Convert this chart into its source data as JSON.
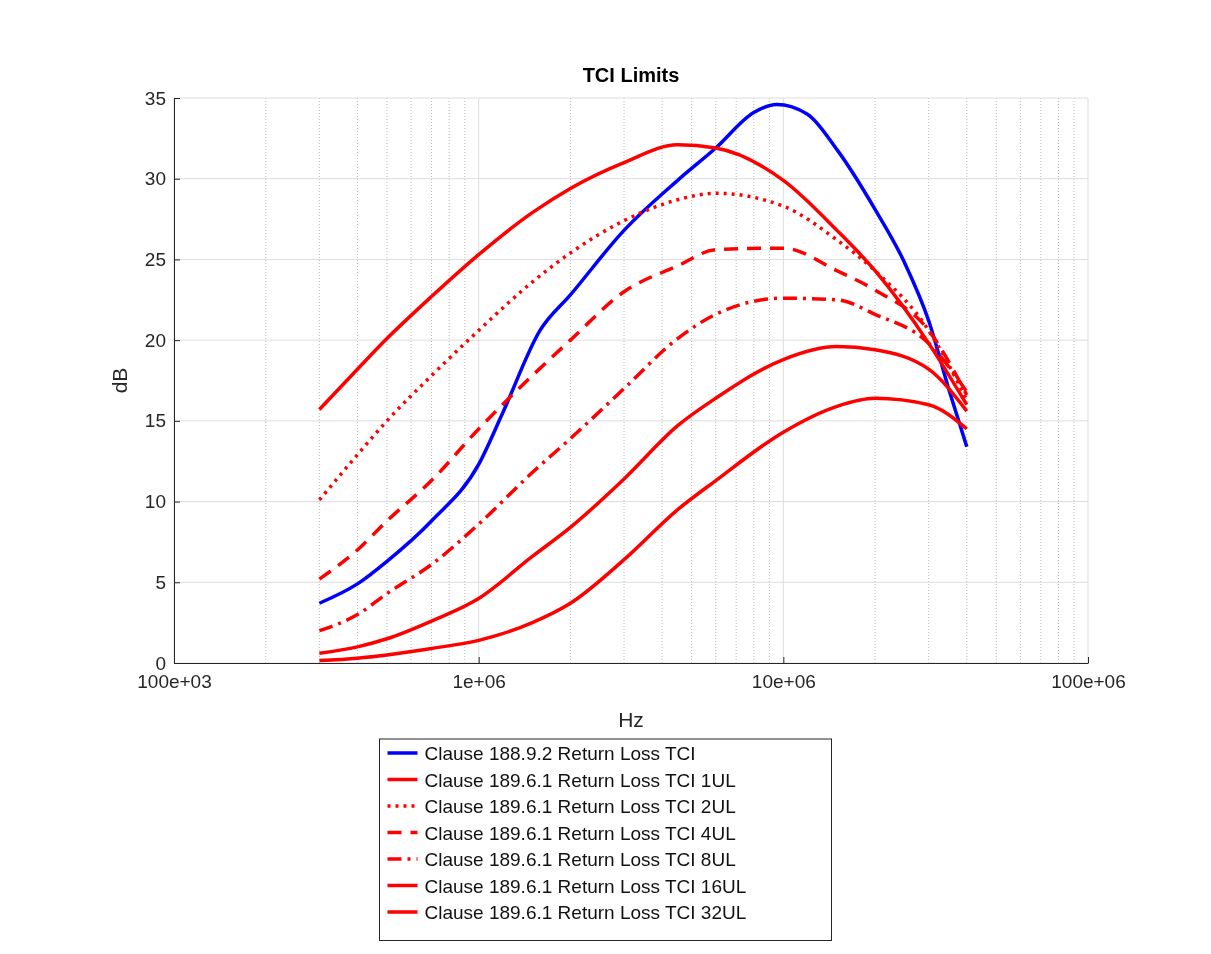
{
  "chart_data": {
    "type": "line",
    "title": "TCI Limits",
    "xlabel": "Hz",
    "ylabel": "dB",
    "log": "x",
    "grid": true,
    "legend": "bottom",
    "marker": "none",
    "x": [
      300000,
      400000,
      500000,
      700000,
      1000000,
      1500000,
      2000000,
      3000000,
      4500000,
      6000000,
      10000000,
      15000000,
      20000000,
      30000000,
      40000000
    ],
    "xlim": [
      100000,
      100000000
    ],
    "xticks": [
      {
        "value": 100000,
        "label": "100e+03"
      },
      {
        "value": 1000000,
        "label": "1e+06"
      },
      {
        "value": 10000000,
        "label": "10e+06"
      },
      {
        "value": 100000000,
        "label": "100e+06"
      }
    ],
    "ylim": [
      0,
      35
    ],
    "yticks": [
      0,
      5,
      10,
      15,
      20,
      25,
      30,
      35
    ],
    "series": [
      {
        "name": "Clause 188.9.2 Return Loss TCI",
        "color": "#0000ff",
        "line_style": "solid",
        "x": [
          300000,
          400000,
          500000,
          700000,
          1000000,
          1200000,
          1590000,
          2000000,
          3000000,
          4500000,
          6000000,
          8000000,
          9500000,
          12000000,
          15000000,
          20000000,
          25000000,
          30000000,
          35000000,
          40000000
        ],
        "values": [
          3.7,
          4.9,
          6.3,
          8.8,
          12.3,
          15.5,
          20.6,
          22.8,
          26.8,
          29.9,
          31.9,
          34.1,
          34.6,
          34.0,
          31.8,
          28.1,
          24.8,
          21.2,
          16.9,
          13.4
        ]
      },
      {
        "name": "Clause 189.6.1 Return Loss TCI 1UL",
        "color": "#ff0000",
        "line_style": "solid",
        "values": [
          15.7,
          18.2,
          20.1,
          22.7,
          25.3,
          27.9,
          29.4,
          31.0,
          32.1,
          31.9,
          29.9,
          26.8,
          24.3,
          19.8,
          16.0
        ]
      },
      {
        "name": "Clause 189.6.1 Return Loss TCI 2UL",
        "color": "#ff0000",
        "line_style": "dotted",
        "values": [
          10.1,
          12.9,
          15.0,
          17.8,
          20.6,
          23.6,
          25.4,
          27.4,
          28.7,
          29.1,
          28.3,
          26.2,
          24.3,
          20.6,
          16.3
        ]
      },
      {
        "name": "Clause 189.6.1 Return Loss TCI 4UL",
        "color": "#ff0000",
        "line_style": "dashed",
        "values": [
          5.2,
          7.0,
          8.8,
          11.3,
          14.5,
          17.8,
          20.0,
          23.0,
          24.6,
          25.6,
          25.7,
          24.3,
          23.1,
          20.6,
          16.6
        ]
      },
      {
        "name": "Clause 189.6.1 Return Loss TCI 8UL",
        "color": "#ff0000",
        "line_style": "dashdot",
        "values": [
          2.0,
          3.0,
          4.3,
          6.1,
          8.6,
          11.8,
          13.9,
          17.0,
          20.1,
          21.6,
          22.6,
          22.5,
          21.6,
          19.8,
          16.8
        ]
      },
      {
        "name": "Clause 189.6.1 Return Loss TCI 16UL",
        "color": "#ff0000",
        "line_style": "solid",
        "values": [
          0.6,
          1.0,
          1.5,
          2.6,
          4.0,
          6.6,
          8.4,
          11.4,
          14.7,
          16.4,
          18.8,
          19.6,
          19.4,
          18.2,
          15.6
        ]
      },
      {
        "name": "Clause 189.6.1 Return Loss TCI 32UL",
        "color": "#ff0000",
        "line_style": "solid",
        "values": [
          0.15,
          0.3,
          0.5,
          0.9,
          1.4,
          2.5,
          3.7,
          6.4,
          9.5,
          11.3,
          14.3,
          15.9,
          16.4,
          16.0,
          14.5
        ]
      }
    ]
  }
}
